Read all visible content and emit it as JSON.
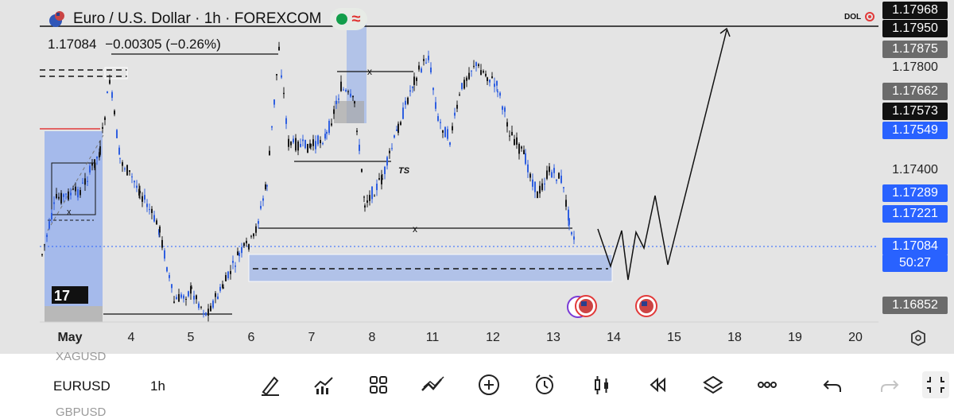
{
  "header": {
    "symbol_title": "Euro / U.S. Dollar · 1h · FOREXCOM",
    "last_price": "1.17084",
    "change": "−0.00305 (−0.26%)"
  },
  "chart_labels": {
    "x_top": "x",
    "x_bottom": "x",
    "x_left": "x",
    "ts": "TS",
    "dol": "DOL"
  },
  "price_scale": [
    {
      "value": "1.17968",
      "style": "dark"
    },
    {
      "value": "1.17950",
      "style": "dark"
    },
    {
      "value": "1.17875",
      "style": "gray"
    },
    {
      "value": "1.17800",
      "style": "plain"
    },
    {
      "value": "1.17662",
      "style": "gray"
    },
    {
      "value": "1.17573",
      "style": "dark"
    },
    {
      "value": "1.17549",
      "style": "blue"
    },
    {
      "value": "1.17400",
      "style": "plain"
    },
    {
      "value": "1.17289",
      "style": "blue"
    },
    {
      "value": "1.17221",
      "style": "blue"
    },
    {
      "value": "1.17084",
      "style": "blue"
    },
    {
      "value": "50:27",
      "style": "blue"
    },
    {
      "value": "1.16852",
      "style": "gray"
    }
  ],
  "time_axis": [
    "May",
    "4",
    "5",
    "6",
    "7",
    "8",
    "11",
    "12",
    "13",
    "14",
    "15",
    "18",
    "19",
    "20"
  ],
  "bottom": {
    "symbol": "EURUSD",
    "interval": "1h",
    "ghost_above": "XAGUSD",
    "ghost_below": "GBPUSD"
  },
  "toolbar_icons": [
    "draw-icon",
    "indicators-icon",
    "layouts-icon",
    "patterns-icon",
    "add-icon",
    "alert-icon",
    "candles-icon",
    "replay-icon",
    "layers-icon",
    "more-icon",
    "undo-icon",
    "redo-icon",
    "fullscreen-icon"
  ],
  "colors": {
    "candle": "#1a1a1a",
    "candle_blue": "#2f5fe0",
    "zone_blue": "#a9bde9",
    "price_tag_blue": "#2962ff",
    "price_tag_dark": "#111111",
    "price_tag_gray": "#666666",
    "chart_bg": "#e5e5e5"
  }
}
